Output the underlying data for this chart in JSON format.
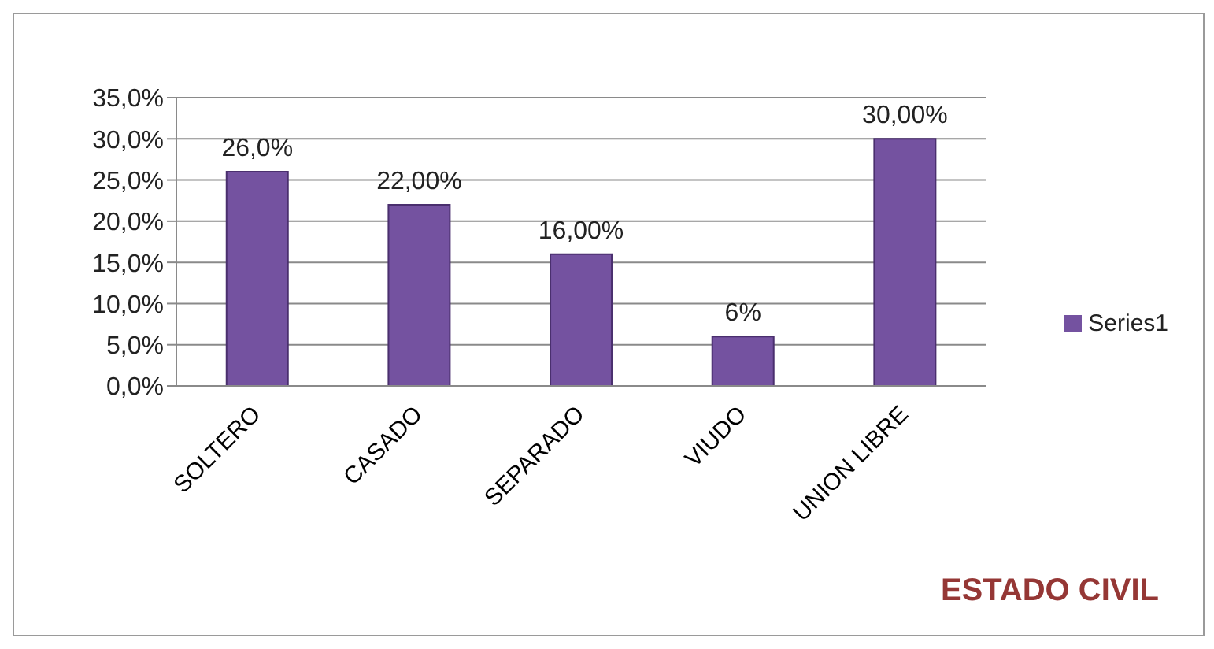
{
  "chart_data": {
    "type": "bar",
    "title": "ESTADO CIVIL",
    "categories": [
      "SOLTERO",
      "CASADO",
      "SEPARADO",
      "VIUDO",
      "UNION LIBRE"
    ],
    "series": [
      {
        "name": "Series1",
        "color": "#7452a0",
        "values": [
          26,
          22,
          16,
          6,
          30
        ],
        "value_labels": [
          "26,0%",
          "22,00%",
          "16,00%",
          "6%",
          "30,00%"
        ]
      }
    ],
    "ylim": [
      0,
      35
    ],
    "yticks": [
      {
        "value": 0,
        "label": "0,0%"
      },
      {
        "value": 5,
        "label": "5,0%"
      },
      {
        "value": 10,
        "label": "10,0%"
      },
      {
        "value": 15,
        "label": "15,0%"
      },
      {
        "value": 20,
        "label": "20,0%"
      },
      {
        "value": 25,
        "label": "25,0%"
      },
      {
        "value": 30,
        "label": "30,0%"
      },
      {
        "value": 35,
        "label": "35,0%"
      }
    ],
    "grid": "y",
    "legend": "right"
  }
}
